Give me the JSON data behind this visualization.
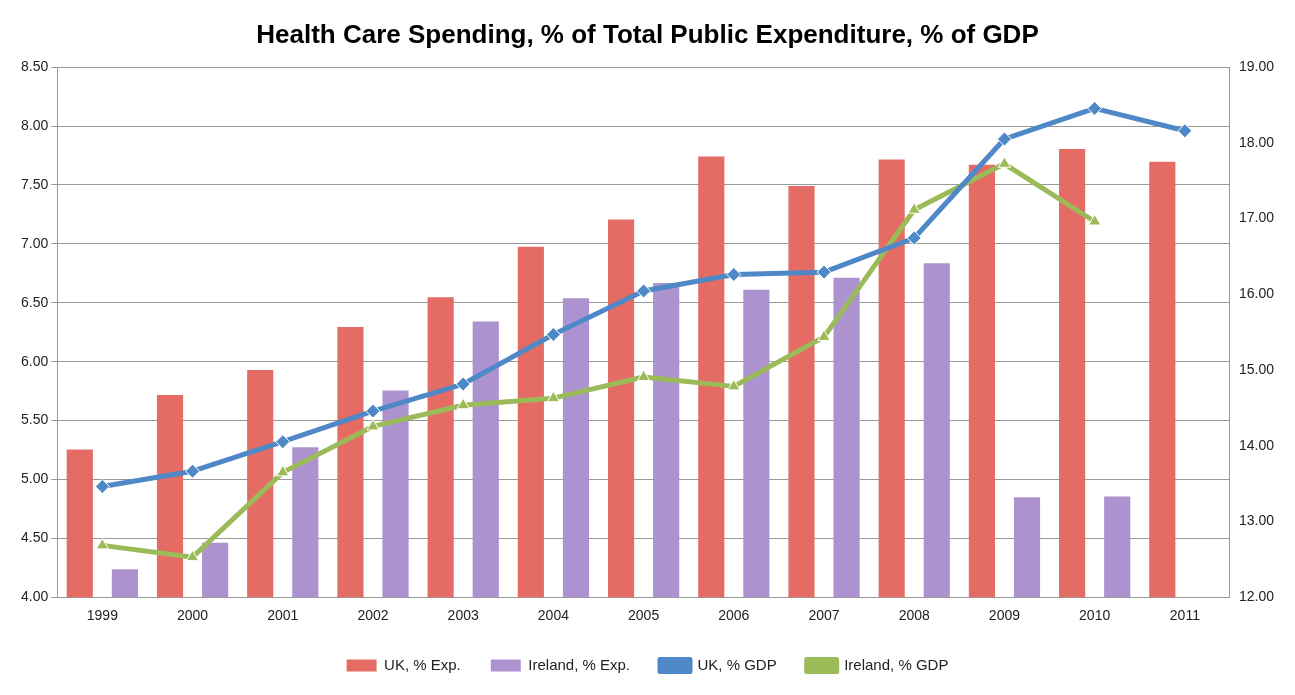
{
  "chart_data": {
    "type": "bar",
    "title": "Health Care Spending, % of Total Public Expenditure, % of GDP",
    "categories": [
      "1999",
      "2000",
      "2001",
      "2002",
      "2003",
      "2004",
      "2005",
      "2006",
      "2007",
      "2008",
      "2009",
      "2010",
      "2011"
    ],
    "series": [
      {
        "name": "UK, % Exp.",
        "axis": "y2",
        "color": "#e46c64",
        "values": [
          13.95,
          14.67,
          15.0,
          15.57,
          15.96,
          16.63,
          16.99,
          17.82,
          17.43,
          17.78,
          17.71,
          17.92,
          17.75
        ]
      },
      {
        "name": "Ireland, % Exp.",
        "axis": "y2",
        "color": "#ac93cf",
        "values": [
          12.37,
          12.72,
          13.98,
          14.73,
          15.64,
          15.95,
          16.15,
          16.06,
          16.22,
          16.41,
          13.32,
          13.33,
          null
        ]
      },
      {
        "name": "UK, % GDP",
        "type": "line",
        "color": "#4f88c6",
        "marker": "diamond",
        "values": [
          4.94,
          5.07,
          5.32,
          5.58,
          5.81,
          6.23,
          6.6,
          6.74,
          6.76,
          7.05,
          7.89,
          8.15,
          7.96
        ]
      },
      {
        "name": "Ireland, % GDP",
        "type": "line",
        "color": "#9bbb59",
        "marker": "triangle",
        "values": [
          4.44,
          4.34,
          5.06,
          5.45,
          5.63,
          5.69,
          5.87,
          5.79,
          6.21,
          7.29,
          7.68,
          7.19,
          null
        ]
      }
    ],
    "ylim": [
      4,
      8.5
    ],
    "yticks": [
      {
        "value": 4,
        "label": "4.00"
      },
      {
        "value": 4.5,
        "label": "4.50"
      },
      {
        "value": 5,
        "label": "5.00"
      },
      {
        "value": 5.5,
        "label": "5.50"
      },
      {
        "value": 6,
        "label": "6.00"
      },
      {
        "value": 6.5,
        "label": "6.50"
      },
      {
        "value": 7,
        "label": "7.00"
      },
      {
        "value": 7.5,
        "label": "7.50"
      },
      {
        "value": 8,
        "label": "8.00"
      },
      {
        "value": 8.5,
        "label": "8.50"
      }
    ],
    "y2lim": [
      12,
      19
    ],
    "y2ticks": [
      {
        "value": 12,
        "label": "12.00"
      },
      {
        "value": 13,
        "label": "13.00"
      },
      {
        "value": 14,
        "label": "14.00"
      },
      {
        "value": 15,
        "label": "15.00"
      },
      {
        "value": 16,
        "label": "16.00"
      },
      {
        "value": 17,
        "label": "17.00"
      },
      {
        "value": 18,
        "label": "18.00"
      },
      {
        "value": 19,
        "label": "19.00"
      }
    ],
    "grid": "y",
    "legend": "bottom",
    "line_style": "solid"
  }
}
